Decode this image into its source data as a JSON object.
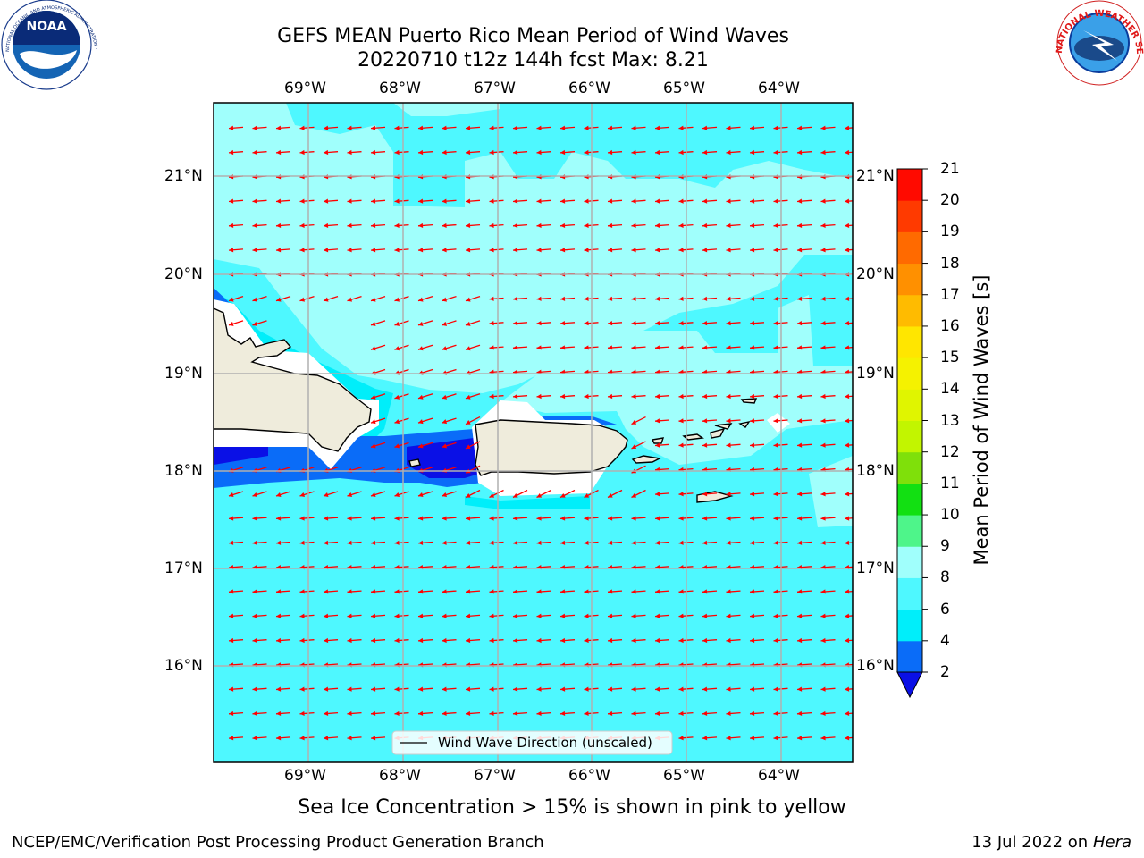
{
  "header": {
    "title_line1": "GEFS MEAN Puerto Rico Mean Period of Wind Waves",
    "title_line2": "20220710 t12z 144h fcst   Max: 8.21"
  },
  "logos": {
    "noaa_text": "NOAA",
    "noaa_ring_text": "NATIONAL OCEANIC AND ATMOSPHERIC ADMINISTRATION · U.S. DEPARTMENT OF COMMERCE",
    "nws_ring_text": "NATIONAL WEATHER SERVICE"
  },
  "map": {
    "lon_labels": [
      "69°W",
      "68°W",
      "67°W",
      "66°W",
      "65°W",
      "64°W"
    ],
    "lat_labels": [
      "21°N",
      "20°N",
      "19°N",
      "18°N",
      "17°N",
      "16°N"
    ],
    "legend_label": "Wind Wave Direction (unscaled)",
    "arrow_color": "#ff0000",
    "land_color": "#efecdc",
    "grid": true
  },
  "colorbar": {
    "label": "Mean Period of Wind Waves [s]",
    "ticks": [
      "2",
      "4",
      "6",
      "8",
      "9",
      "10",
      "11",
      "12",
      "13",
      "14",
      "15",
      "16",
      "17",
      "18",
      "19",
      "20",
      "21"
    ],
    "bands": [
      {
        "from": 2,
        "to": 4,
        "color": "#0a6cf8"
      },
      {
        "from": 4,
        "to": 6,
        "color": "#00eefa"
      },
      {
        "from": 6,
        "to": 8,
        "color": "#4ef8ff"
      },
      {
        "from": 8,
        "to": 9,
        "color": "#a0fffc"
      },
      {
        "from": 9,
        "to": 10,
        "color": "#4ef58a"
      },
      {
        "from": 10,
        "to": 11,
        "color": "#12e012"
      },
      {
        "from": 11,
        "to": 12,
        "color": "#7fe00a"
      },
      {
        "from": 12,
        "to": 13,
        "color": "#c2f500"
      },
      {
        "from": 13,
        "to": 14,
        "color": "#e0f500"
      },
      {
        "from": 14,
        "to": 15,
        "color": "#f5f200"
      },
      {
        "from": 15,
        "to": 16,
        "color": "#ffe600"
      },
      {
        "from": 16,
        "to": 17,
        "color": "#ffbb00"
      },
      {
        "from": 17,
        "to": 18,
        "color": "#ff9000"
      },
      {
        "from": 18,
        "to": 19,
        "color": "#ff6a00"
      },
      {
        "from": 19,
        "to": 20,
        "color": "#ff3a00"
      },
      {
        "from": 20,
        "to": 21,
        "color": "#ff0a00"
      }
    ],
    "under_color": "#0a10e6"
  },
  "caption": "Sea Ice Concentration > 15% is shown in pink to yellow",
  "footer": {
    "left": "NCEP/EMC/Verification Post Processing Product Generation Branch",
    "date": "13 Jul 2022 on",
    "machine": "Hera"
  }
}
